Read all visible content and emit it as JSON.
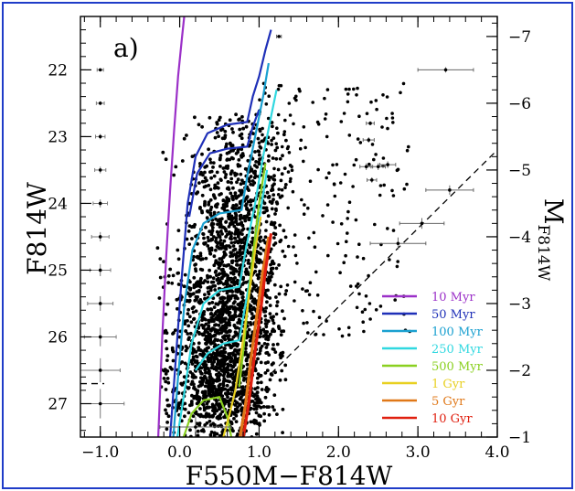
{
  "chart_data": {
    "type": "scatter",
    "panel_label": "a)",
    "title": "",
    "xlabel": "F550M−F814W",
    "ylabel_left": "F814W",
    "ylabel_right_main": "M",
    "ylabel_right_sub": "F814W",
    "xlim": [
      -1.25,
      4.0
    ],
    "ylim_left": [
      27.5,
      21.2
    ],
    "ylim_right": [
      -1,
      -7.3
    ],
    "inverted_y": true,
    "x_ticks": [
      -1.0,
      0.0,
      1.0,
      2.0,
      3.0,
      4.0
    ],
    "x_tick_labels": [
      "−1.0",
      "0.0",
      "1.0",
      "2.0",
      "3.0",
      "4.0"
    ],
    "y_ticks_left": [
      22,
      23,
      24,
      25,
      26,
      27
    ],
    "y_tick_labels_left": [
      "22",
      "23",
      "24",
      "25",
      "26",
      "27"
    ],
    "y_ticks_right": [
      -1,
      -2,
      -3,
      -4,
      -5,
      -6,
      -7
    ],
    "y_tick_labels_right": [
      "−1",
      "−2",
      "−3",
      "−4",
      "−5",
      "−6",
      "−7"
    ],
    "legend_position": "bottom-right",
    "series": [
      {
        "name": "10 Myr",
        "color": "#9b30c8",
        "points": [
          [
            -0.27,
            27.5
          ],
          [
            -0.22,
            26.0
          ],
          [
            -0.17,
            24.8
          ],
          [
            -0.12,
            23.8
          ],
          [
            -0.07,
            22.9
          ],
          [
            -0.02,
            22.1
          ],
          [
            0.03,
            21.5
          ],
          [
            0.07,
            21.05
          ]
        ]
      },
      {
        "name": "50 Myr",
        "color": "#1f30b8",
        "points": [
          [
            -0.12,
            27.5
          ],
          [
            -0.06,
            26.5
          ],
          [
            0.02,
            25.2
          ],
          [
            0.1,
            24.0
          ],
          [
            0.2,
            23.3
          ],
          [
            0.35,
            22.95
          ],
          [
            0.6,
            22.82
          ],
          [
            0.85,
            22.78
          ],
          [
            0.92,
            22.4
          ],
          [
            1.0,
            22.1
          ],
          [
            1.08,
            21.7
          ],
          [
            1.15,
            21.4
          ]
        ]
      },
      {
        "name": "50 Myr b",
        "color": "#1f30b8",
        "points": [
          [
            0.12,
            24.2
          ],
          [
            0.22,
            23.55
          ],
          [
            0.38,
            23.25
          ],
          [
            0.6,
            23.18
          ],
          [
            0.85,
            23.15
          ],
          [
            0.92,
            22.85
          ],
          [
            1.0,
            22.6
          ]
        ]
      },
      {
        "name": "100 Myr",
        "color": "#1aa0d0",
        "points": [
          [
            -0.08,
            27.5
          ],
          [
            -0.02,
            26.6
          ],
          [
            0.06,
            25.5
          ],
          [
            0.16,
            24.7
          ],
          [
            0.3,
            24.3
          ],
          [
            0.5,
            24.15
          ],
          [
            0.78,
            24.1
          ],
          [
            0.85,
            23.6
          ],
          [
            0.95,
            23.0
          ],
          [
            1.05,
            22.4
          ],
          [
            1.12,
            21.9
          ]
        ]
      },
      {
        "name": "250 Myr",
        "color": "#30d8e0",
        "points": [
          [
            -0.03,
            27.5
          ],
          [
            0.05,
            26.9
          ],
          [
            0.15,
            26.1
          ],
          [
            0.3,
            25.5
          ],
          [
            0.5,
            25.3
          ],
          [
            0.75,
            25.25
          ],
          [
            0.83,
            24.7
          ],
          [
            0.95,
            24.0
          ],
          [
            1.05,
            23.3
          ],
          [
            1.15,
            22.7
          ],
          [
            1.22,
            22.3
          ]
        ]
      },
      {
        "name": "250 Myr b",
        "color": "#30d8e0",
        "points": [
          [
            0.2,
            26.5
          ],
          [
            0.35,
            26.25
          ],
          [
            0.55,
            26.1
          ],
          [
            0.75,
            26.05
          ],
          [
            0.83,
            25.5
          ],
          [
            0.92,
            24.9
          ],
          [
            1.02,
            24.1
          ],
          [
            1.1,
            23.5
          ]
        ]
      },
      {
        "name": "500 Myr",
        "color": "#8ad020",
        "points": [
          [
            0.05,
            27.5
          ],
          [
            0.15,
            27.15
          ],
          [
            0.3,
            26.95
          ],
          [
            0.5,
            26.9
          ],
          [
            0.6,
            27.2
          ],
          [
            0.65,
            27.5
          ]
        ]
      },
      {
        "name": "500 Myr b",
        "color": "#8ad020",
        "points": [
          [
            0.75,
            26.75
          ],
          [
            0.82,
            26.0
          ],
          [
            0.9,
            25.0
          ],
          [
            1.0,
            24.0
          ],
          [
            1.08,
            23.4
          ]
        ]
      },
      {
        "name": "1 Gyr",
        "color": "#e8d020",
        "points": [
          [
            0.55,
            27.5
          ],
          [
            0.62,
            27.2
          ],
          [
            0.7,
            26.8
          ],
          [
            0.78,
            26.2
          ],
          [
            0.86,
            25.5
          ],
          [
            0.95,
            24.7
          ],
          [
            1.02,
            24.2
          ]
        ]
      },
      {
        "name": "5 Gyr",
        "color": "#e07818",
        "points": [
          [
            0.76,
            27.5
          ],
          [
            0.83,
            27.0
          ],
          [
            0.9,
            26.3
          ],
          [
            0.98,
            25.6
          ],
          [
            1.05,
            25.0
          ],
          [
            1.12,
            24.5
          ]
        ]
      },
      {
        "name": "10 Gyr",
        "color": "#e02010",
        "points": [
          [
            0.8,
            27.5
          ],
          [
            0.87,
            27.0
          ],
          [
            0.94,
            26.3
          ],
          [
            1.02,
            25.6
          ],
          [
            1.08,
            25.0
          ],
          [
            1.15,
            24.45
          ]
        ]
      }
    ],
    "reddening_vector": {
      "points": [
        [
          1.15,
          26.55
        ],
        [
          4.0,
          23.2
        ]
      ],
      "style": "dashed"
    },
    "completeness_limit": {
      "points": [
        [
          -1.25,
          26.7
        ],
        [
          -0.95,
          26.7
        ]
      ],
      "style": "dashed"
    },
    "error_bars_left": [
      {
        "x": -1.0,
        "y": 22.0,
        "xerr": 0.04,
        "yerr": 0.02
      },
      {
        "x": -1.0,
        "y": 22.5,
        "xerr": 0.05,
        "yerr": 0.03
      },
      {
        "x": -1.0,
        "y": 23.0,
        "xerr": 0.06,
        "yerr": 0.04
      },
      {
        "x": -1.0,
        "y": 23.5,
        "xerr": 0.07,
        "yerr": 0.05
      },
      {
        "x": -1.0,
        "y": 24.0,
        "xerr": 0.09,
        "yerr": 0.06
      },
      {
        "x": -1.0,
        "y": 24.5,
        "xerr": 0.11,
        "yerr": 0.07
      },
      {
        "x": -1.0,
        "y": 25.0,
        "xerr": 0.13,
        "yerr": 0.09
      },
      {
        "x": -1.0,
        "y": 25.5,
        "xerr": 0.16,
        "yerr": 0.11
      },
      {
        "x": -1.0,
        "y": 26.0,
        "xerr": 0.2,
        "yerr": 0.14
      },
      {
        "x": -1.0,
        "y": 26.5,
        "xerr": 0.25,
        "yerr": 0.18
      },
      {
        "x": -1.0,
        "y": 27.0,
        "xerr": 0.3,
        "yerr": 0.22
      }
    ],
    "error_bars_points": [
      {
        "x": 1.25,
        "y": 21.5,
        "xerr": 0.03,
        "yerr": 0.02
      },
      {
        "x": 3.35,
        "y": 22.0,
        "xerr": 0.35,
        "yerr": 0.04
      },
      {
        "x": 2.4,
        "y": 22.8,
        "xerr": 0.05,
        "yerr": 0.03
      },
      {
        "x": 2.38,
        "y": 23.05,
        "xerr": 0.07,
        "yerr": 0.04
      },
      {
        "x": 2.35,
        "y": 23.45,
        "xerr": 0.08,
        "yerr": 0.05
      },
      {
        "x": 2.5,
        "y": 23.45,
        "xerr": 0.09,
        "yerr": 0.05
      },
      {
        "x": 2.62,
        "y": 23.42,
        "xerr": 0.1,
        "yerr": 0.05
      },
      {
        "x": 2.42,
        "y": 23.65,
        "xerr": 0.06,
        "yerr": 0.04
      },
      {
        "x": 3.4,
        "y": 23.8,
        "xerr": 0.3,
        "yerr": 0.07
      },
      {
        "x": 3.05,
        "y": 24.3,
        "xerr": 0.28,
        "yerr": 0.08
      },
      {
        "x": 2.75,
        "y": 24.6,
        "xerr": 0.35,
        "yerr": 0.09
      },
      {
        "x": 0.2,
        "y": 27.35,
        "xerr": 0.45,
        "yerr": 0.15
      }
    ],
    "scatter_note": "dense cluster of several thousand stars, colors about -0.2 to 1.3, magnitudes about 22.5 to 27.5, plus sparse red stars up to color 2.8"
  }
}
